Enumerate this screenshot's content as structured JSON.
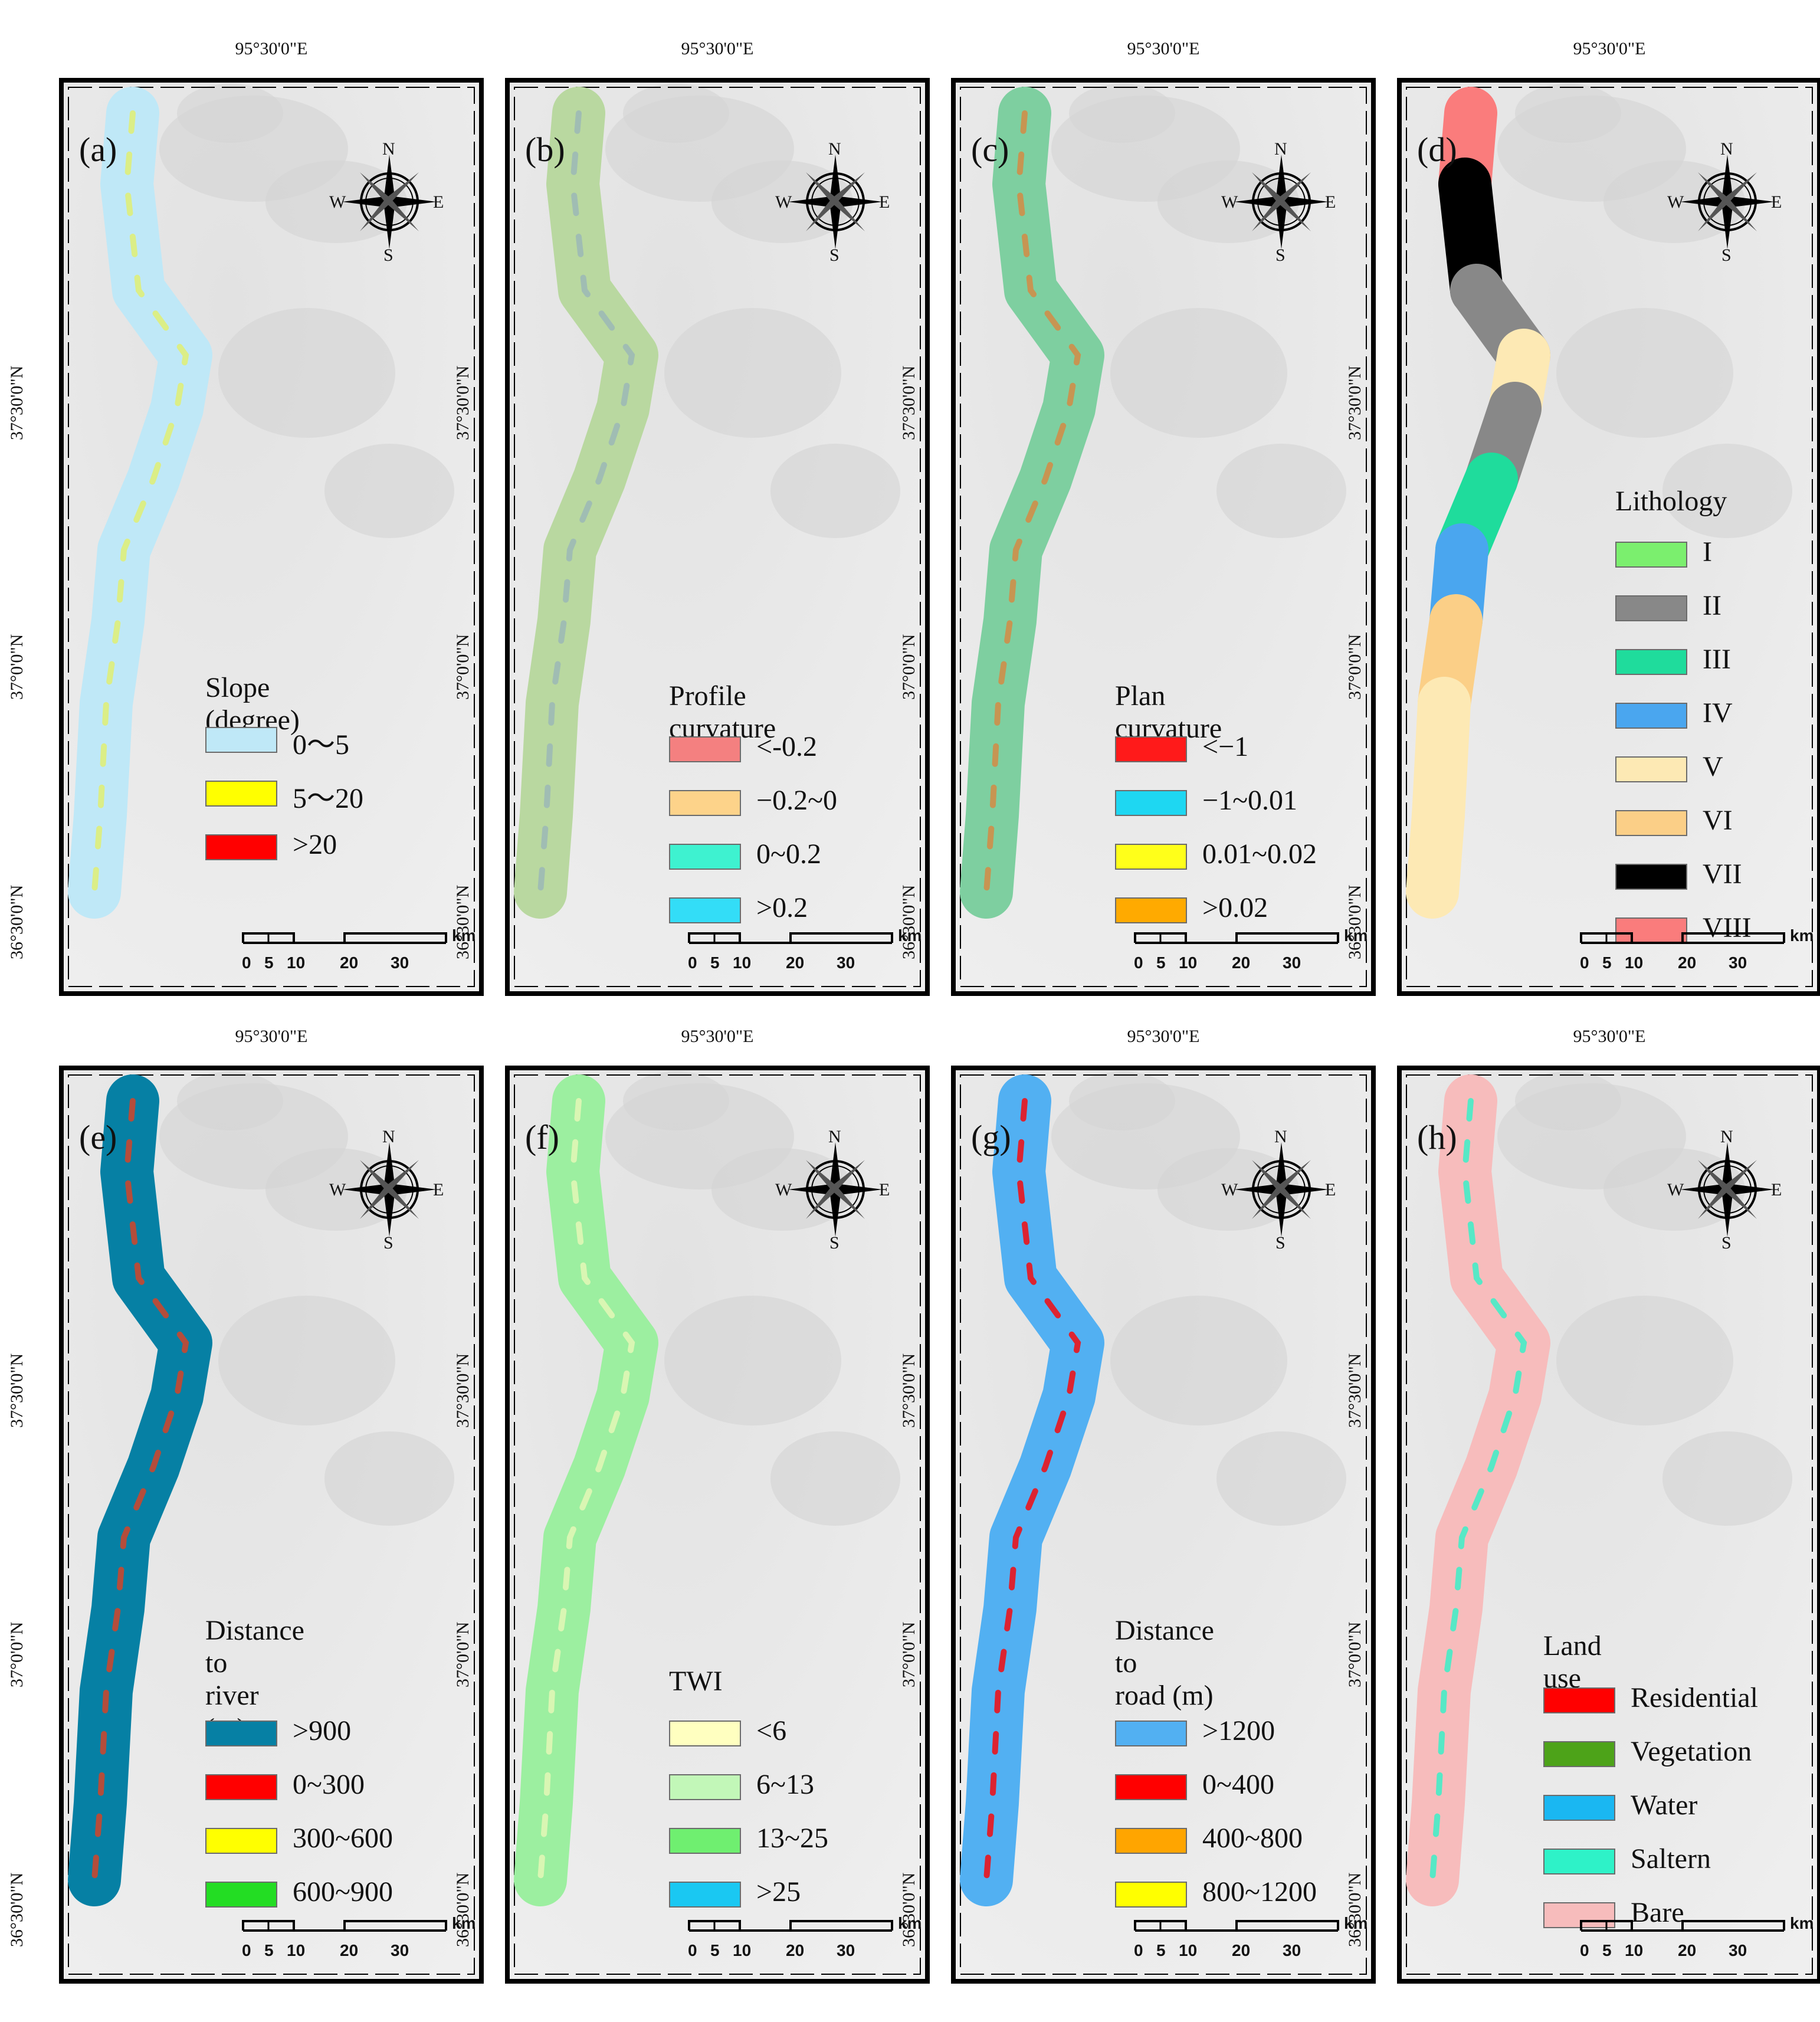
{
  "coordinates": {
    "lon": "95°30'0\"E",
    "lat": [
      "37°30'0\"N",
      "37°0'0\"N",
      "36°30'0\"N"
    ]
  },
  "compass": {
    "n": "N",
    "s": "S",
    "e": "E",
    "w": "W"
  },
  "scale": {
    "unit": "km",
    "ticks": [
      "0",
      "5",
      "10",
      "20",
      "30"
    ]
  },
  "panels": [
    {
      "label": "(a)",
      "legend_title": "Slope (degree)",
      "items": [
        {
          "label": "0～5",
          "color": "#bfe8f7"
        },
        {
          "label": "5～20",
          "color": "#ffff00"
        },
        {
          "label": ">20",
          "color": "#ff0000"
        }
      ],
      "strip_color": "#bfe8f7",
      "accent": "#e2ef6a"
    },
    {
      "label": "(b)",
      "legend_title": "Profile curvature",
      "items": [
        {
          "label": "<-0.2",
          "color": "#f48080"
        },
        {
          "label": "−0.2~0",
          "color": "#fdd38a"
        },
        {
          "label": "0~0.2",
          "color": "#3ef2d0"
        },
        {
          "label": ">0.2",
          "color": "#33ddf7"
        }
      ],
      "strip_color": "#b9d8a0",
      "accent": "#9ab6b8"
    },
    {
      "label": "(c)",
      "legend_title": "Plan curvature",
      "items": [
        {
          "label": "<−1",
          "color": "#ff1a1a"
        },
        {
          "label": "−1~0.01",
          "color": "#1ed7f2"
        },
        {
          "label": "0.01~0.02",
          "color": "#ffff1a"
        },
        {
          "label": ">0.02",
          "color": "#ffaa00"
        }
      ],
      "strip_color": "#7ecfa0",
      "accent": "#d9863e"
    },
    {
      "label": "(d)",
      "legend_title": "Lithology",
      "items": [
        {
          "label": "I",
          "color": "#7bef6e"
        },
        {
          "label": "II",
          "color": "#888888"
        },
        {
          "label": "III",
          "color": "#1fdc9c"
        },
        {
          "label": "IV",
          "color": "#4aa6ef"
        },
        {
          "label": "V",
          "color": "#fde9b4"
        },
        {
          "label": "VI",
          "color": "#fbcf87"
        },
        {
          "label": "VII",
          "color": "#000000"
        },
        {
          "label": "VIII",
          "color": "#fa7c7c"
        }
      ]
    },
    {
      "label": "(e)",
      "legend_title": "Distance to\nriver  (m)",
      "items": [
        {
          "label": ">900",
          "color": "#0680a4"
        },
        {
          "label": "0~300",
          "color": "#ff0000"
        },
        {
          "label": "300~600",
          "color": "#ffff00"
        },
        {
          "label": "600~900",
          "color": "#23dd23"
        }
      ],
      "strip_color": "#0680a4",
      "accent": "#e04020"
    },
    {
      "label": "(f)",
      "legend_title": "TWI",
      "items": [
        {
          "label": "<6",
          "color": "#ffffc0"
        },
        {
          "label": "6~13",
          "color": "#c2f7b8"
        },
        {
          "label": "13~25",
          "color": "#6fef70"
        },
        {
          "label": ">25",
          "color": "#1ac8f2"
        }
      ],
      "strip_color": "#9cefa0",
      "accent": "#e8f7b8"
    },
    {
      "label": "(g)",
      "legend_title": "Distance to\nroad  (m)",
      "items": [
        {
          "label": ">1200",
          "color": "#52b0f2"
        },
        {
          "label": "0~400",
          "color": "#ff0000"
        },
        {
          "label": "400~800",
          "color": "#ffa500"
        },
        {
          "label": "800~1200",
          "color": "#ffff00"
        }
      ],
      "strip_color": "#52b0f2",
      "accent": "#ff0000"
    },
    {
      "label": "(h)",
      "legend_title": "Land use",
      "items": [
        {
          "label": "Residential",
          "color": "#ff0000"
        },
        {
          "label": "Vegetation",
          "color": "#4da319"
        },
        {
          "label": "Water",
          "color": "#1ab7f2"
        },
        {
          "label": "Saltern",
          "color": "#2ef2c8"
        },
        {
          "label": "Bare",
          "color": "#f7bcbc"
        }
      ],
      "strip_color": "#f7bcbc",
      "accent": "#2ef2c8"
    }
  ]
}
